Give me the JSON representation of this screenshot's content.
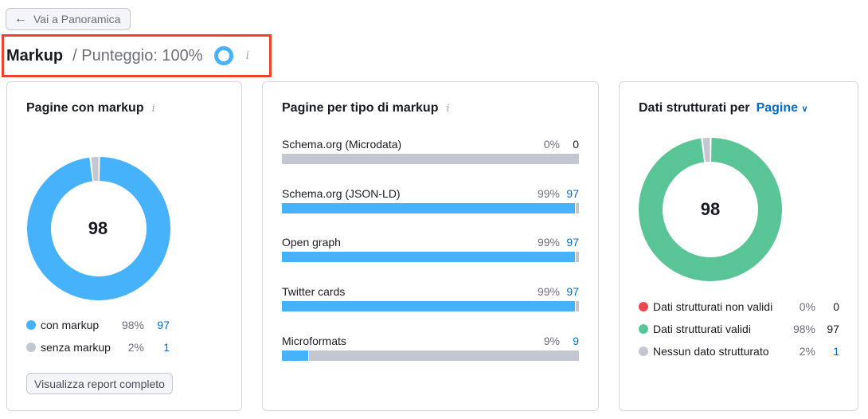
{
  "back_button": {
    "label": "Vai a Panoramica",
    "icon": "arrow-left-icon"
  },
  "header": {
    "title": "Markup",
    "score": "/ Punteggio: 100%",
    "score_value": 100,
    "info": "i"
  },
  "colors": {
    "blue": "#45b2fb",
    "green": "#59c596",
    "gray": "#c4c7cf",
    "red": "#e8484f",
    "link": "#006dca"
  },
  "card1": {
    "title": "Pagine con markup",
    "info": "i",
    "center": "98",
    "legend": [
      {
        "label": "con markup",
        "pct": "98%",
        "count": "97",
        "color": "#45b2fb",
        "value": 98
      },
      {
        "label": "senza markup",
        "pct": "2%",
        "count": "1",
        "color": "#c4c7cf",
        "value": 2
      }
    ],
    "button": "Visualizza report completo"
  },
  "card2": {
    "title": "Pagine per tipo di markup",
    "info": "i",
    "rows": [
      {
        "label": "Schema.org (Microdata)",
        "pct": "0%",
        "count": "0",
        "fill": 0
      },
      {
        "label": "Schema.org (JSON-LD)",
        "pct": "99%",
        "count": "97",
        "fill": 99
      },
      {
        "label": "Open graph",
        "pct": "99%",
        "count": "97",
        "fill": 99
      },
      {
        "label": "Twitter cards",
        "pct": "99%",
        "count": "97",
        "fill": 99
      },
      {
        "label": "Microformats",
        "pct": "9%",
        "count": "9",
        "fill": 9
      }
    ]
  },
  "card3": {
    "title": "Dati strutturati per",
    "dropdown": "Pagine",
    "center": "98",
    "legend": [
      {
        "label": "Dati strutturati non validi",
        "pct": "0%",
        "count": "0",
        "color": "#e8484f",
        "value": 0
      },
      {
        "label": "Dati strutturati validi",
        "pct": "98%",
        "count": "97",
        "color": "#59c596",
        "value": 98
      },
      {
        "label": "Nessun dato strutturato",
        "pct": "2%",
        "count": "1",
        "color": "#c4c7cf",
        "value": 2
      }
    ]
  }
}
